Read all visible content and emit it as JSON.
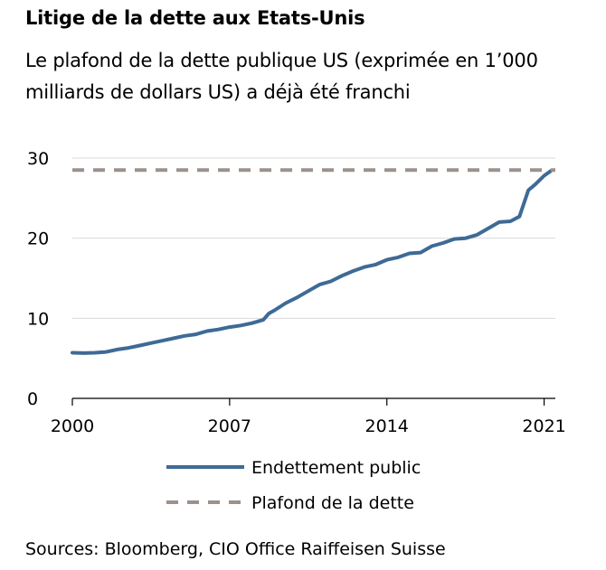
{
  "title": "Litige de la dette aux Etats-Unis",
  "subtitle": "Le plafond de la dette publique US (exprimée en 1’000 milliards de dollars US) a déjà été franchi",
  "source": "Sources: Bloomberg, CIO Office Raiffeisen Suisse",
  "chart_data": {
    "type": "line",
    "title": "Litige de la dette aux Etats-Unis",
    "subtitle": "Le plafond de la dette publique US (exprimée en 1’000 milliards de dollars US) a déjà été franchi",
    "xlabel": "",
    "ylabel": "",
    "xlim": [
      2000,
      2021.5
    ],
    "ylim": [
      0,
      30
    ],
    "x_ticks": [
      2000,
      2007,
      2014,
      2021
    ],
    "y_ticks": [
      0,
      10,
      20,
      30
    ],
    "grid": true,
    "legend_position": "bottom",
    "series": [
      {
        "name": "Endettement public",
        "color": "#3e6a96",
        "style": "solid",
        "x": [
          2000.0,
          2000.5,
          2001.0,
          2001.5,
          2002.0,
          2002.5,
          2003.0,
          2003.5,
          2004.0,
          2004.5,
          2005.0,
          2005.5,
          2006.0,
          2006.5,
          2007.0,
          2007.5,
          2008.0,
          2008.5,
          2008.75,
          2009.0,
          2009.5,
          2010.0,
          2010.5,
          2011.0,
          2011.5,
          2012.0,
          2012.5,
          2013.0,
          2013.5,
          2014.0,
          2014.5,
          2015.0,
          2015.5,
          2016.0,
          2016.5,
          2017.0,
          2017.5,
          2018.0,
          2018.5,
          2019.0,
          2019.5,
          2019.9,
          2020.0,
          2020.3,
          2020.6,
          2021.0,
          2021.3
        ],
        "values": [
          5.7,
          5.65,
          5.7,
          5.8,
          6.1,
          6.3,
          6.6,
          6.9,
          7.2,
          7.5,
          7.8,
          8.0,
          8.4,
          8.6,
          8.9,
          9.1,
          9.4,
          9.8,
          10.6,
          11.0,
          11.9,
          12.6,
          13.4,
          14.2,
          14.6,
          15.3,
          15.9,
          16.4,
          16.7,
          17.3,
          17.6,
          18.1,
          18.2,
          19.0,
          19.4,
          19.9,
          20.0,
          20.4,
          21.2,
          22.0,
          22.1,
          22.7,
          23.5,
          26.0,
          26.7,
          27.8,
          28.4
        ]
      },
      {
        "name": "Plafond de la dette",
        "color": "#9c918b",
        "style": "dashed",
        "x": [
          2000,
          2021.5
        ],
        "values": [
          28.5,
          28.5
        ]
      }
    ]
  }
}
